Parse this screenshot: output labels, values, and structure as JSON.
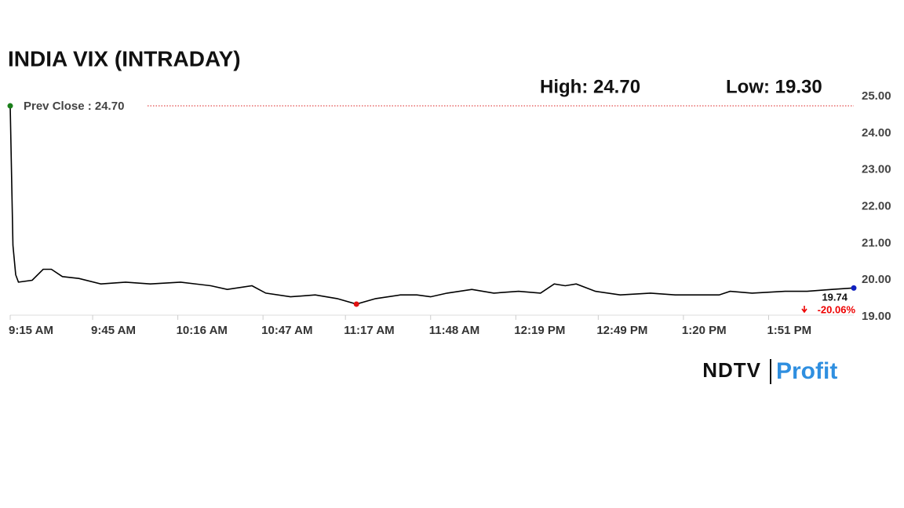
{
  "chart_data": {
    "type": "line",
    "title": "INDIA VIX (INTRADAY)",
    "high_label": "High: 24.70",
    "low_label": "Low: 19.30",
    "prev_close": 24.7,
    "prev_close_label": "Prev Close : 24.70",
    "last_value_label": "19.74",
    "change_label": "-20.06%",
    "color": "#000000",
    "x": [
      555,
      556,
      557,
      558,
      563,
      567,
      570,
      574,
      580,
      588,
      597,
      606,
      617,
      628,
      634,
      643,
      648,
      657,
      666,
      674,
      681,
      688,
      697,
      703,
      708,
      714,
      723,
      731,
      740,
      748,
      753,
      757,
      761,
      768,
      777,
      788,
      797,
      808,
      813,
      817,
      825,
      837,
      845,
      854,
      862
    ],
    "values": [
      24.7,
      20.9,
      20.1,
      19.9,
      19.95,
      20.25,
      20.25,
      20.05,
      20.0,
      19.85,
      19.9,
      19.85,
      19.9,
      19.8,
      19.7,
      19.8,
      19.6,
      19.5,
      19.55,
      19.45,
      19.3,
      19.45,
      19.55,
      19.55,
      19.5,
      19.6,
      19.7,
      19.6,
      19.65,
      19.6,
      19.85,
      19.8,
      19.85,
      19.65,
      19.55,
      19.6,
      19.55,
      19.55,
      19.55,
      19.65,
      19.6,
      19.65,
      19.65,
      19.7,
      19.74
    ],
    "xlim": [
      555,
      862
    ],
    "xticks": [
      {
        "value": 555,
        "label": "9:15 AM"
      },
      {
        "value": 585,
        "label": "9:45 AM"
      },
      {
        "value": 616,
        "label": "10:16 AM"
      },
      {
        "value": 647,
        "label": "10:47 AM"
      },
      {
        "value": 677,
        "label": "11:17 AM"
      },
      {
        "value": 708,
        "label": "11:48 AM"
      },
      {
        "value": 739,
        "label": "12:19 PM"
      },
      {
        "value": 769,
        "label": "12:49 PM"
      },
      {
        "value": 800,
        "label": "1:20 PM"
      },
      {
        "value": 831,
        "label": "1:51 PM"
      }
    ],
    "ylim": [
      19,
      25
    ],
    "yticks": [
      {
        "value": 19,
        "label": "19.00"
      },
      {
        "value": 20,
        "label": "20.00"
      },
      {
        "value": 21,
        "label": "21.00"
      },
      {
        "value": 22,
        "label": "22.00"
      },
      {
        "value": 23,
        "label": "23.00"
      },
      {
        "value": 24,
        "label": "24.00"
      },
      {
        "value": 25,
        "label": "25.00"
      }
    ],
    "logo": {
      "left": "NDTV",
      "right": "Profit"
    }
  }
}
